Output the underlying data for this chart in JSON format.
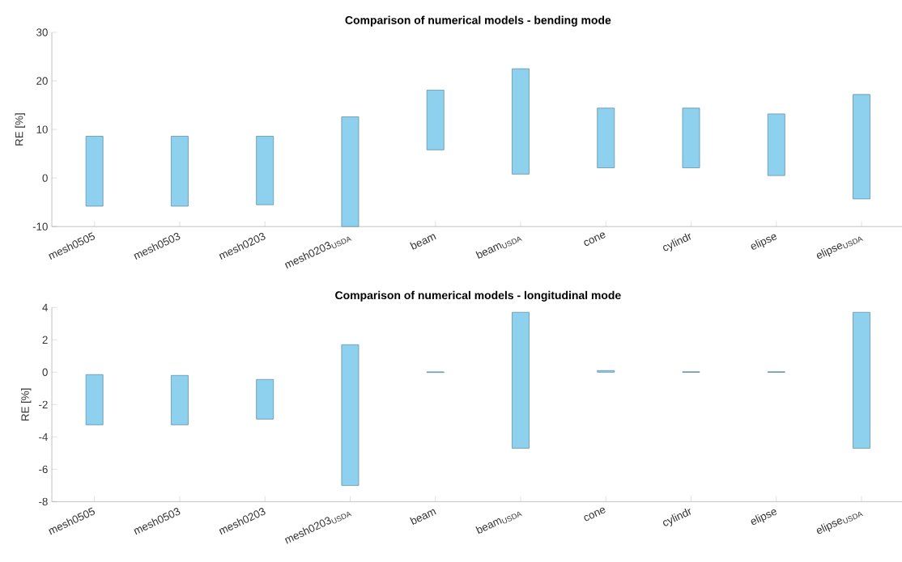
{
  "chart_data": [
    {
      "type": "bar",
      "title": "Comparison of numerical models - bending mode",
      "ylabel": "RE [%]",
      "categories": [
        "mesh0505",
        "mesh0503",
        "mesh0203",
        "mesh0203$_{USDA}$",
        "beam",
        "beam$_{USDA}$",
        "cone",
        "cylindr",
        "elipse",
        "elipse$_{USDA}$"
      ],
      "base": [
        -5.8,
        -5.8,
        -5.5,
        -10,
        5.8,
        0.8,
        2.1,
        2.1,
        0.5,
        -4.3
      ],
      "values": [
        14.4,
        14.4,
        14.1,
        22.6,
        12.3,
        21.7,
        12.3,
        12.3,
        12.7,
        21.5
      ],
      "color": "#8dd1ef",
      "ylim": [
        -10,
        30
      ],
      "yticks": [
        -10,
        0,
        10,
        20,
        30
      ]
    },
    {
      "type": "bar",
      "title": "Comparison of numerical models - longitudinal mode",
      "ylabel": "RE [%]",
      "categories": [
        "mesh0505",
        "mesh0503",
        "mesh0203",
        "mesh0203$_{USDA}$",
        "beam",
        "beam$_{USDA}$",
        "cone",
        "cylindr",
        "elipse",
        "elipse$_{USDA}$"
      ],
      "base": [
        -3.25,
        -3.25,
        -2.9,
        -7.0,
        -0.02,
        -4.7,
        0,
        -0.01,
        -0.01,
        -4.7
      ],
      "values": [
        3.1,
        3.05,
        2.45,
        8.7,
        0.04,
        8.4,
        0.1,
        0.04,
        0.04,
        8.4
      ],
      "color": "#8dd1ef",
      "ylim": [
        -8,
        4
      ],
      "yticks": [
        -8,
        -6,
        -4,
        -2,
        0,
        2,
        4
      ]
    }
  ]
}
